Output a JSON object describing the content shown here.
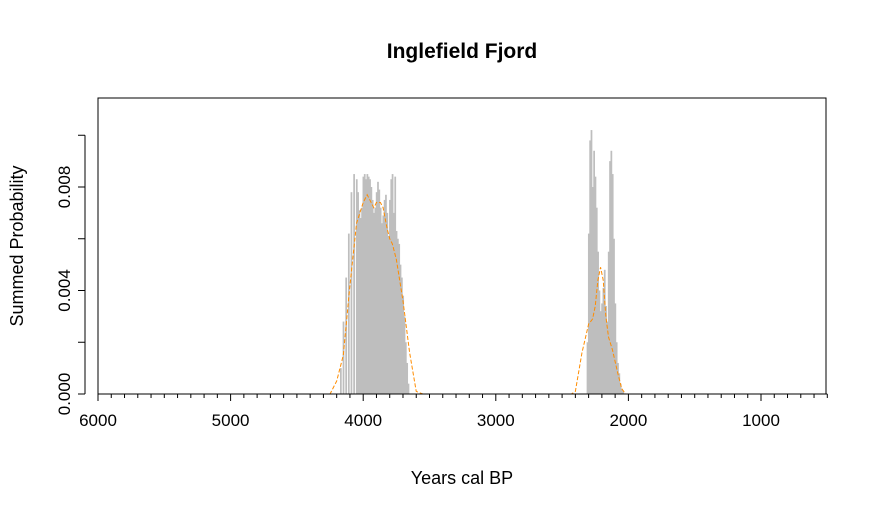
{
  "chart_data": {
    "type": "area",
    "title": "Inglefield Fjord",
    "xlabel": "Years cal BP",
    "ylabel": "Summed Probability",
    "xlim": [
      6000,
      500
    ],
    "ylim": [
      0,
      0.0114
    ],
    "x_reversed": true,
    "grid": false,
    "x_ticks": [
      6000,
      5000,
      4000,
      3000,
      2000,
      1000
    ],
    "x_tick_labels": [
      "6000",
      "5000",
      "4000",
      "3000",
      "2000",
      "1000"
    ],
    "y_ticks": [
      0,
      0.002,
      0.004,
      0.006,
      0.008,
      0.01
    ],
    "y_tick_labels": [
      "0.000",
      "",
      "0.004",
      "",
      "0.008",
      ""
    ],
    "colors": {
      "spd_fill": "#bebebe",
      "running_mean": "#ff8c00",
      "axis": "#000000"
    },
    "series": [
      {
        "kind": "histogram",
        "x": [
          4170,
          4150,
          4130,
          4110,
          4090,
          4070,
          4050,
          4040,
          4030,
          4020,
          4010,
          4000,
          3990,
          3980,
          3970,
          3960,
          3950,
          3940,
          3930,
          3920,
          3910,
          3900,
          3890,
          3880,
          3870,
          3860,
          3850,
          3840,
          3830,
          3820,
          3810,
          3800,
          3790,
          3780,
          3770,
          3760,
          3750,
          3740,
          3730,
          3720,
          3710,
          3700,
          3690,
          3680,
          3670,
          3660,
          2310,
          2300,
          2290,
          2280,
          2270,
          2260,
          2250,
          2240,
          2230,
          2220,
          2210,
          2200,
          2190,
          2180,
          2170,
          2160,
          2150,
          2140,
          2130,
          2120,
          2110,
          2100,
          2090,
          2080,
          2070,
          2060,
          2050,
          2040
        ],
        "values": [
          0.001,
          0.0028,
          0.0045,
          0.0062,
          0.0078,
          0.0085,
          0.0083,
          0.0078,
          0.0071,
          0.0068,
          0.0072,
          0.0084,
          0.0085,
          0.0083,
          0.0085,
          0.0084,
          0.0083,
          0.008,
          0.0075,
          0.007,
          0.0072,
          0.0078,
          0.0082,
          0.0079,
          0.0072,
          0.0066,
          0.0069,
          0.0075,
          0.0077,
          0.007,
          0.0061,
          0.0075,
          0.0083,
          0.0085,
          0.007,
          0.0084,
          0.0063,
          0.006,
          0.0058,
          0.005,
          0.0045,
          0.0038,
          0.003,
          0.002,
          0.0012,
          0.0004,
          0.002,
          0.0062,
          0.0098,
          0.0102,
          0.008,
          0.0094,
          0.0084,
          0.0072,
          0.0055,
          0.004,
          0.0032,
          0.0035,
          0.0041,
          0.0048,
          0.0034,
          0.0028,
          0.0055,
          0.009,
          0.0094,
          0.0085,
          0.006,
          0.0035,
          0.002,
          0.0012,
          0.0008,
          0.0004,
          0.0002,
          0.0001
        ]
      },
      {
        "kind": "running_mean",
        "style": "dashed",
        "x": [
          4300,
          4250,
          4200,
          4150,
          4100,
          4050,
          4000,
          3970,
          3950,
          3920,
          3900,
          3870,
          3850,
          3820,
          3800,
          3780,
          3750,
          3700,
          3650,
          3600,
          3550,
          3500,
          2430,
          2400,
          2350,
          2300,
          2270,
          2250,
          2230,
          2210,
          2190,
          2170,
          2150,
          2120,
          2080,
          2050,
          2020,
          2000,
          1980
        ],
        "values": [
          0,
          0,
          0.0005,
          0.0015,
          0.0042,
          0.0066,
          0.0074,
          0.0077,
          0.0075,
          0.0072,
          0.0074,
          0.0074,
          0.0072,
          0.0064,
          0.006,
          0.0058,
          0.0052,
          0.0036,
          0.0016,
          0.0001,
          0,
          0,
          0,
          0.0001,
          0.0016,
          0.0027,
          0.0029,
          0.0034,
          0.0044,
          0.0049,
          0.0044,
          0.003,
          0.0022,
          0.0017,
          0.0008,
          0.0002,
          0,
          0,
          0
        ]
      }
    ]
  }
}
